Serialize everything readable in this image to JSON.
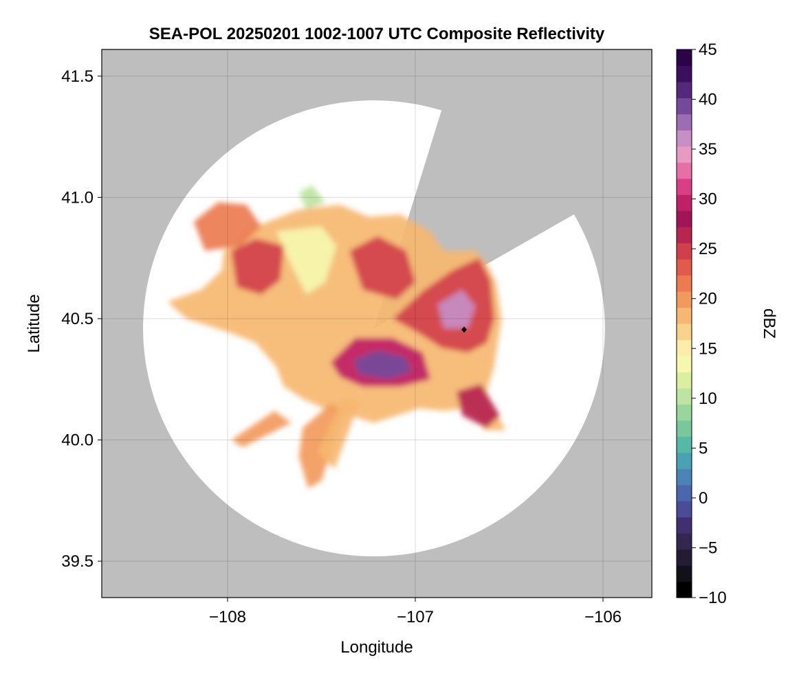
{
  "chart_data": {
    "type": "heatmap",
    "title": "SEA-POL 20250201 1002-1007 UTC Composite Reflectivity",
    "xlabel": "Longitude",
    "ylabel": "Latitude",
    "xlim": [
      -108.67,
      -105.74
    ],
    "ylim": [
      39.35,
      41.61
    ],
    "xticks": [
      -108,
      -107,
      -106
    ],
    "xtick_labels": [
      "−108",
      "−107",
      "−106"
    ],
    "yticks": [
      39.5,
      40.0,
      40.5,
      41.0,
      41.5
    ],
    "ytick_labels": [
      "39.5",
      "40.0",
      "40.5",
      "41.0",
      "41.5"
    ],
    "grid": true,
    "background_color": "#bebebe",
    "radar_site": {
      "lon": -107.22,
      "lat": 40.46
    },
    "radar_range_deg_lon": 1.23,
    "radar_range_deg_lat": 0.94,
    "beam_blockage_sectors_deg_from_north": [
      [
        17,
        60
      ]
    ],
    "marker": {
      "lon": -106.74,
      "lat": 40.455,
      "shape": "diamond",
      "color": "#000000"
    },
    "colorbar": {
      "label": "dBZ",
      "min": -10,
      "max": 45,
      "ticks": [
        -10,
        -5,
        0,
        5,
        10,
        15,
        20,
        25,
        30,
        35,
        40,
        45
      ],
      "tick_labels": [
        "−10",
        "−5",
        "0",
        "5",
        "10",
        "15",
        "20",
        "25",
        "30",
        "35",
        "40",
        "45"
      ],
      "colors": [
        "#000000",
        "#121018",
        "#241c33",
        "#332650",
        "#40306f",
        "#4a4c96",
        "#4a67ad",
        "#4a84b7",
        "#4aa1b3",
        "#55b9a6",
        "#78c89b",
        "#9ad69b",
        "#bde4a0",
        "#dcefa0",
        "#f6f8b0",
        "#fbedaa",
        "#f9d38c",
        "#f6b770",
        "#f29a5c",
        "#ec7b50",
        "#e25b4a",
        "#d1404a",
        "#b72550",
        "#a01556",
        "#c02066",
        "#da3f86",
        "#e670a6",
        "#e89ac3",
        "#c68ec4",
        "#9d6cb2",
        "#74499a",
        "#54287a",
        "#3c0f5c",
        "#2a0448"
      ]
    },
    "precip_areas": [
      {
        "name": "main",
        "dbz": 18,
        "polygon": [
          [
            -108.02,
            40.78
          ],
          [
            -107.85,
            40.88
          ],
          [
            -107.62,
            40.95
          ],
          [
            -107.4,
            40.97
          ],
          [
            -107.25,
            40.92
          ],
          [
            -107.08,
            40.93
          ],
          [
            -106.92,
            40.86
          ],
          [
            -106.85,
            40.78
          ],
          [
            -106.68,
            40.78
          ],
          [
            -106.62,
            40.73
          ],
          [
            -106.57,
            40.65
          ],
          [
            -106.54,
            40.5
          ],
          [
            -106.58,
            40.3
          ],
          [
            -106.62,
            40.2
          ],
          [
            -106.57,
            40.12
          ],
          [
            -106.52,
            40.04
          ],
          [
            -106.63,
            40.04
          ],
          [
            -106.72,
            40.13
          ],
          [
            -106.85,
            40.12
          ],
          [
            -106.98,
            40.13
          ],
          [
            -107.1,
            40.1
          ],
          [
            -107.22,
            40.07
          ],
          [
            -107.35,
            40.1
          ],
          [
            -107.46,
            40.12
          ],
          [
            -107.6,
            40.17
          ],
          [
            -107.7,
            40.22
          ],
          [
            -107.74,
            40.3
          ],
          [
            -107.85,
            40.4
          ],
          [
            -107.98,
            40.44
          ],
          [
            -108.1,
            40.47
          ],
          [
            -108.22,
            40.5
          ],
          [
            -108.32,
            40.57
          ],
          [
            -108.14,
            40.62
          ],
          [
            -108.03,
            40.7
          ]
        ]
      },
      {
        "name": "nw-arm",
        "dbz": 22,
        "polygon": [
          [
            -108.18,
            40.9
          ],
          [
            -108.05,
            40.98
          ],
          [
            -107.9,
            40.97
          ],
          [
            -107.82,
            40.88
          ],
          [
            -107.93,
            40.8
          ],
          [
            -108.12,
            40.78
          ]
        ]
      },
      {
        "name": "sw-band-1",
        "dbz": 20,
        "polygon": [
          [
            -107.98,
            40.0
          ],
          [
            -107.75,
            40.12
          ],
          [
            -107.66,
            40.07
          ],
          [
            -107.92,
            39.97
          ]
        ]
      },
      {
        "name": "sw-band-2",
        "dbz": 20,
        "polygon": [
          [
            -107.6,
            40.05
          ],
          [
            -107.45,
            40.15
          ],
          [
            -107.38,
            40.12
          ],
          [
            -107.5,
            39.83
          ],
          [
            -107.57,
            39.8
          ],
          [
            -107.62,
            39.93
          ]
        ]
      },
      {
        "name": "sw-band-3",
        "dbz": 18,
        "polygon": [
          [
            -107.52,
            39.95
          ],
          [
            -107.38,
            40.18
          ],
          [
            -107.3,
            40.15
          ],
          [
            -107.43,
            39.88
          ]
        ]
      },
      {
        "name": "n-green-1",
        "dbz": 13,
        "polygon": [
          [
            -107.74,
            40.86
          ],
          [
            -107.5,
            40.88
          ],
          [
            -107.42,
            40.8
          ],
          [
            -107.48,
            40.65
          ],
          [
            -107.58,
            40.6
          ],
          [
            -107.66,
            40.72
          ]
        ]
      },
      {
        "name": "n-green-2",
        "dbz": 10,
        "polygon": [
          [
            -107.62,
            41.02
          ],
          [
            -107.55,
            41.05
          ],
          [
            -107.48,
            40.98
          ],
          [
            -107.58,
            40.95
          ]
        ]
      },
      {
        "name": "e-core",
        "dbz": 24,
        "polygon": [
          [
            -107.12,
            40.5
          ],
          [
            -106.95,
            40.62
          ],
          [
            -106.8,
            40.7
          ],
          [
            -106.66,
            40.75
          ],
          [
            -106.6,
            40.66
          ],
          [
            -106.58,
            40.5
          ],
          [
            -106.62,
            40.4
          ],
          [
            -106.72,
            40.36
          ],
          [
            -106.86,
            40.38
          ],
          [
            -106.98,
            40.44
          ]
        ]
      },
      {
        "name": "w-core",
        "dbz": 25,
        "polygon": [
          [
            -107.98,
            40.78
          ],
          [
            -107.85,
            40.83
          ],
          [
            -107.7,
            40.8
          ],
          [
            -107.72,
            40.66
          ],
          [
            -107.82,
            40.6
          ],
          [
            -107.95,
            40.63
          ]
        ]
      },
      {
        "name": "n-core",
        "dbz": 24,
        "polygon": [
          [
            -107.35,
            40.78
          ],
          [
            -107.2,
            40.84
          ],
          [
            -107.05,
            40.78
          ],
          [
            -107.0,
            40.65
          ],
          [
            -107.1,
            40.58
          ],
          [
            -107.28,
            40.62
          ]
        ]
      },
      {
        "name": "central-core",
        "dbz": 30,
        "polygon": [
          [
            -107.45,
            40.32
          ],
          [
            -107.32,
            40.42
          ],
          [
            -107.12,
            40.42
          ],
          [
            -106.96,
            40.36
          ],
          [
            -106.92,
            40.25
          ],
          [
            -107.08,
            40.22
          ],
          [
            -107.28,
            40.22
          ],
          [
            -107.4,
            40.26
          ]
        ]
      },
      {
        "name": "central-peak",
        "dbz": 40,
        "polygon": [
          [
            -107.33,
            40.33
          ],
          [
            -107.2,
            40.37
          ],
          [
            -107.05,
            40.34
          ],
          [
            -107.02,
            40.28
          ],
          [
            -107.15,
            40.25
          ],
          [
            -107.3,
            40.27
          ]
        ]
      },
      {
        "name": "e-peak",
        "dbz": 36,
        "polygon": [
          [
            -106.88,
            40.56
          ],
          [
            -106.75,
            40.62
          ],
          [
            -106.68,
            40.55
          ],
          [
            -106.72,
            40.46
          ],
          [
            -106.85,
            40.46
          ]
        ]
      },
      {
        "name": "se-lobe",
        "dbz": 27,
        "polygon": [
          [
            -106.78,
            40.2
          ],
          [
            -106.65,
            40.23
          ],
          [
            -106.55,
            40.1
          ],
          [
            -106.62,
            40.05
          ],
          [
            -106.75,
            40.1
          ]
        ]
      }
    ]
  }
}
